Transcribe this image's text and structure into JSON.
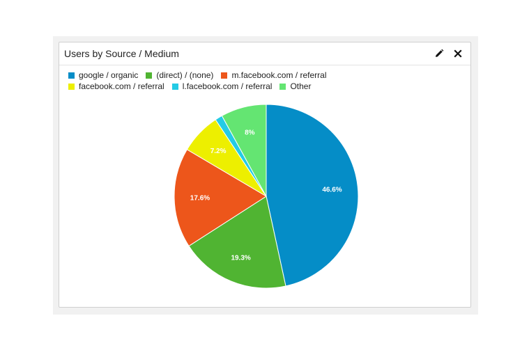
{
  "widget": {
    "title": "Users by Source / Medium",
    "edit_icon": "pencil-icon",
    "close_icon": "close-icon"
  },
  "chart_data": {
    "type": "pie",
    "title": "Users by Source / Medium",
    "legend_position": "top",
    "slices": [
      {
        "name": "google / organic",
        "value": 46.6,
        "label": "46.6%",
        "color": "#058dc7"
      },
      {
        "name": "(direct) / (none)",
        "value": 19.3,
        "label": "19.3%",
        "color": "#50b432"
      },
      {
        "name": "m.facebook.com / referral",
        "value": 17.6,
        "label": "17.6%",
        "color": "#ed561b"
      },
      {
        "name": "facebook.com / referral",
        "value": 7.2,
        "label": "7.2%",
        "color": "#edef00"
      },
      {
        "name": "l.facebook.com / referral",
        "value": 1.3,
        "label": "",
        "color": "#24cbe5"
      },
      {
        "name": "Other",
        "value": 8.0,
        "label": "8%",
        "color": "#64e572"
      }
    ]
  }
}
